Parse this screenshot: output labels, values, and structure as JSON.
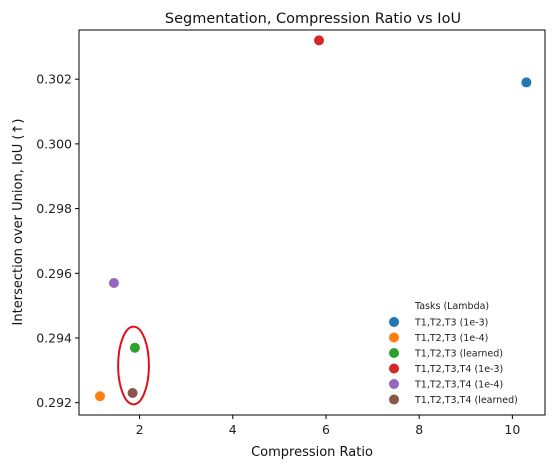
{
  "chart_data": {
    "type": "scatter",
    "title": "Segmentation, Compression Ratio vs IoU",
    "xlabel": "Compression Ratio",
    "ylabel": "Intersection over Union, IoU (↑)",
    "xlim": [
      0.7,
      10.7
    ],
    "ylim": [
      0.29162,
      0.30352
    ],
    "xticks": [
      2,
      4,
      6,
      8,
      10
    ],
    "yticks": [
      0.292,
      0.294,
      0.296,
      0.298,
      0.3,
      0.302
    ],
    "grid": false,
    "legend": {
      "title": "Tasks (Lambda)",
      "placement": "lower-right"
    },
    "series": [
      {
        "name": "T1,T2,T3 (1e-3)",
        "color": "#1f77b4",
        "x": 10.3,
        "y": 0.3019
      },
      {
        "name": "T1,T2,T3 (1e-4)",
        "color": "#ff7f0e",
        "x": 1.15,
        "y": 0.2922
      },
      {
        "name": "T1,T2,T3 (learned)",
        "color": "#2ca02c",
        "x": 1.9,
        "y": 0.2937
      },
      {
        "name": "T1,T2,T3,T4 (1e-3)",
        "color": "#d62728",
        "x": 5.85,
        "y": 0.3032
      },
      {
        "name": "T1,T2,T3,T4 (1e-4)",
        "color": "#9467bd",
        "x": 1.45,
        "y": 0.2957
      },
      {
        "name": "T1,T2,T3,T4 (learned)",
        "color": "#8c564b",
        "x": 1.85,
        "y": 0.2923
      }
    ],
    "annotations": [
      {
        "type": "ellipse",
        "color": "#e0101a",
        "cx": 1.87,
        "cy": 0.29315,
        "rx": 0.33,
        "ry": 0.0012
      }
    ]
  }
}
